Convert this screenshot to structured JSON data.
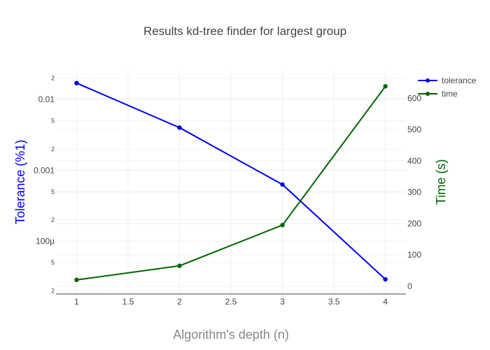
{
  "chart_data": {
    "type": "line",
    "title": "Results kd-tree finder for largest group",
    "xlabel": "Algorithm's depth (n)",
    "ylabel": "Tolerance (%1)",
    "y2label": "Time (s)",
    "xlim": [
      0.8,
      4.2
    ],
    "ylim_log": [
      1.8e-05,
      0.026
    ],
    "y2lim": [
      -25,
      690
    ],
    "x_ticks": [
      "1",
      "1.5",
      "2",
      "2.5",
      "3",
      "3.5",
      "4"
    ],
    "y_major_ticks": [
      "0.01",
      "0.001",
      "100μ"
    ],
    "y_minor_ticks": [
      "2",
      "5",
      "2",
      "5",
      "2",
      "5",
      "2"
    ],
    "y2_ticks": [
      "0",
      "100",
      "200",
      "300",
      "400",
      "500",
      "600"
    ],
    "grid": true,
    "legend_position": "top-right",
    "series": [
      {
        "name": "tolerance",
        "axis": "y",
        "color": "#0000ee",
        "x": [
          1,
          2,
          3,
          4
        ],
        "values": [
          0.017,
          0.004,
          0.00063,
          2.9e-05
        ]
      },
      {
        "name": "time",
        "axis": "y2",
        "color": "#006400",
        "x": [
          1,
          2,
          3,
          4
        ],
        "values": [
          20,
          65,
          195,
          638
        ]
      }
    ],
    "colors": {
      "ylabel": "#0000ee",
      "y2label": "#006400",
      "grid": "#eeeeee",
      "axis": "#444444"
    }
  }
}
